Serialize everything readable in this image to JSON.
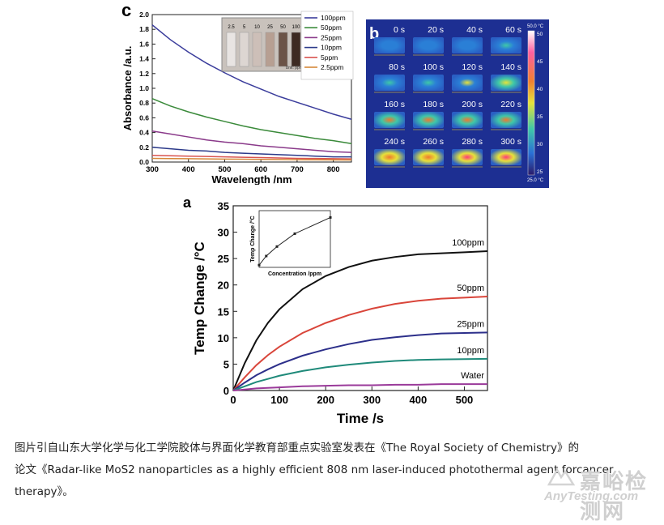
{
  "chart_data": [
    {
      "panel_label": "c",
      "type": "line",
      "xlabel": "Wavelength /nm",
      "ylabel": "Absorbance /a.u.",
      "xlim": [
        300,
        850
      ],
      "ylim": [
        0,
        2.0
      ],
      "x_ticks": [
        "300",
        "400",
        "500",
        "600",
        "700",
        "800"
      ],
      "y_ticks": [
        "0.0",
        "0.2",
        "0.4",
        "0.6",
        "0.8",
        "1.0",
        "1.2",
        "1.4",
        "1.6",
        "1.8",
        "2.0"
      ],
      "legend_placement": "top-right",
      "inset_labels": [
        "2.5",
        "5",
        "10",
        "25",
        "50",
        "100",
        "Unit: ppm"
      ],
      "x": [
        300,
        350,
        400,
        450,
        500,
        550,
        600,
        650,
        700,
        750,
        800,
        850
      ],
      "series": [
        {
          "name": "100ppm",
          "color": "#3b3d9c",
          "values": [
            1.86,
            1.66,
            1.49,
            1.34,
            1.21,
            1.09,
            0.99,
            0.89,
            0.81,
            0.73,
            0.65,
            0.58
          ]
        },
        {
          "name": "50ppm",
          "color": "#3a8a3a",
          "values": [
            0.86,
            0.76,
            0.68,
            0.61,
            0.55,
            0.49,
            0.44,
            0.4,
            0.36,
            0.32,
            0.29,
            0.25
          ]
        },
        {
          "name": "25ppm",
          "color": "#8a3a8a",
          "values": [
            0.42,
            0.38,
            0.34,
            0.3,
            0.27,
            0.25,
            0.22,
            0.2,
            0.18,
            0.16,
            0.14,
            0.13
          ]
        },
        {
          "name": "10ppm",
          "color": "#2c3a8a",
          "values": [
            0.2,
            0.18,
            0.16,
            0.15,
            0.13,
            0.12,
            0.11,
            0.1,
            0.09,
            0.08,
            0.07,
            0.07
          ]
        },
        {
          "name": "5ppm",
          "color": "#d9534f",
          "values": [
            0.09,
            0.085,
            0.08,
            0.075,
            0.07,
            0.065,
            0.06,
            0.055,
            0.05,
            0.048,
            0.045,
            0.043
          ]
        },
        {
          "name": "2.5ppm",
          "color": "#d6883a",
          "values": [
            0.05,
            0.047,
            0.045,
            0.043,
            0.04,
            0.038,
            0.036,
            0.034,
            0.032,
            0.03,
            0.029,
            0.028
          ]
        }
      ]
    },
    {
      "panel_label": "b",
      "type": "heatmap",
      "frames": [
        "0 s",
        "20 s",
        "40 s",
        "60 s",
        "80 s",
        "100 s",
        "120 s",
        "140 s",
        "160 s",
        "180 s",
        "200 s",
        "220 s",
        "240 s",
        "260 s",
        "280 s",
        "300 s"
      ],
      "frame_intensity": [
        0.05,
        0.1,
        0.18,
        0.26,
        0.4,
        0.45,
        0.5,
        0.55,
        0.62,
        0.66,
        0.7,
        0.72,
        0.78,
        0.8,
        0.82,
        0.84
      ],
      "colorbar_max_label": "50.0 °C",
      "colorbar_min_label": "25.0 °C",
      "colorbar_ticks": [
        "50",
        "45",
        "40",
        "35",
        "30",
        "25"
      ]
    },
    {
      "panel_label": "a",
      "type": "line",
      "xlabel": "Time /s",
      "ylabel": "Temp Change /°C",
      "xlim": [
        0,
        550
      ],
      "ylim": [
        0,
        35
      ],
      "x_ticks": [
        "0",
        "100",
        "200",
        "300",
        "400",
        "500"
      ],
      "y_ticks": [
        "0",
        "5",
        "10",
        "15",
        "20",
        "25",
        "30",
        "35"
      ],
      "x": [
        0,
        25,
        50,
        75,
        100,
        150,
        200,
        250,
        300,
        350,
        400,
        450,
        500,
        550
      ],
      "series": [
        {
          "name": "100ppm",
          "color": "#111111",
          "values": [
            0,
            5.2,
            9.5,
            12.8,
            15.4,
            19.2,
            21.7,
            23.4,
            24.6,
            25.3,
            25.8,
            26.0,
            26.2,
            26.4
          ]
        },
        {
          "name": "50ppm",
          "color": "#d9453a",
          "values": [
            0,
            2.5,
            4.8,
            6.7,
            8.3,
            10.9,
            12.8,
            14.3,
            15.5,
            16.4,
            17.0,
            17.4,
            17.6,
            17.8
          ]
        },
        {
          "name": "25ppm",
          "color": "#2c2f8a",
          "values": [
            0,
            1.5,
            2.9,
            4.0,
            5.0,
            6.6,
            7.8,
            8.8,
            9.6,
            10.1,
            10.5,
            10.8,
            10.9,
            11.0
          ]
        },
        {
          "name": "10ppm",
          "color": "#1f8a7a",
          "values": [
            0,
            0.8,
            1.6,
            2.2,
            2.8,
            3.7,
            4.4,
            4.9,
            5.3,
            5.6,
            5.8,
            5.9,
            5.95,
            6.0
          ]
        },
        {
          "name": "Water",
          "color": "#9a3a9a",
          "values": [
            0,
            0.2,
            0.4,
            0.5,
            0.6,
            0.8,
            0.9,
            1.0,
            1.0,
            1.1,
            1.1,
            1.2,
            1.2,
            1.2
          ]
        }
      ],
      "inset": {
        "xlabel": "Concentration /ppm",
        "ylabel": "Temp Change /°C",
        "x": [
          0,
          10,
          25,
          50,
          100
        ],
        "y": [
          1.2,
          6.0,
          11.0,
          17.8,
          26.4
        ],
        "xlim": [
          0,
          100
        ],
        "ylim": [
          0,
          30
        ]
      }
    }
  ],
  "caption": {
    "line1": "图片引自山东大学化学与化工学院胶体与界面化学教育部重点实验室发表在《The Royal Society of Chemistry》的",
    "line2": "论文《Radar-like MoS2 nanoparticles as a highly efficient 808 nm laser-induced photothermal agent forcancer",
    "line3": "therapy》。"
  },
  "watermark": {
    "cn": "嘉峪检测网",
    "en": "AnyTesting.com"
  }
}
